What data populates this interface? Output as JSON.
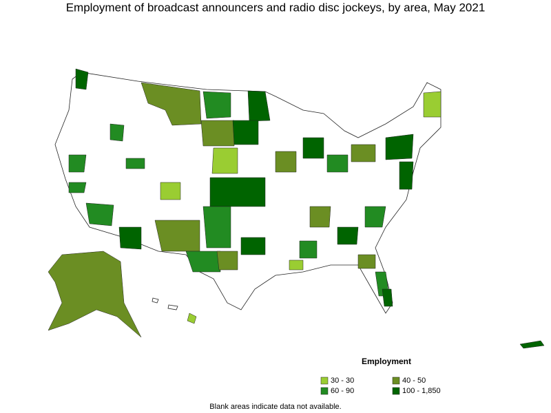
{
  "title": "Employment of broadcast announcers and radio disc jockeys, by area, May 2021",
  "legend": {
    "title": "Employment",
    "classes": [
      {
        "label": "30 - 30",
        "color": "#9acd32"
      },
      {
        "label": "40 - 50",
        "color": "#6b8e23"
      },
      {
        "label": "60 - 90",
        "color": "#228b22"
      },
      {
        "label": "100 - 1,850",
        "color": "#006400"
      }
    ]
  },
  "note": "Blank areas indicate data not available."
}
